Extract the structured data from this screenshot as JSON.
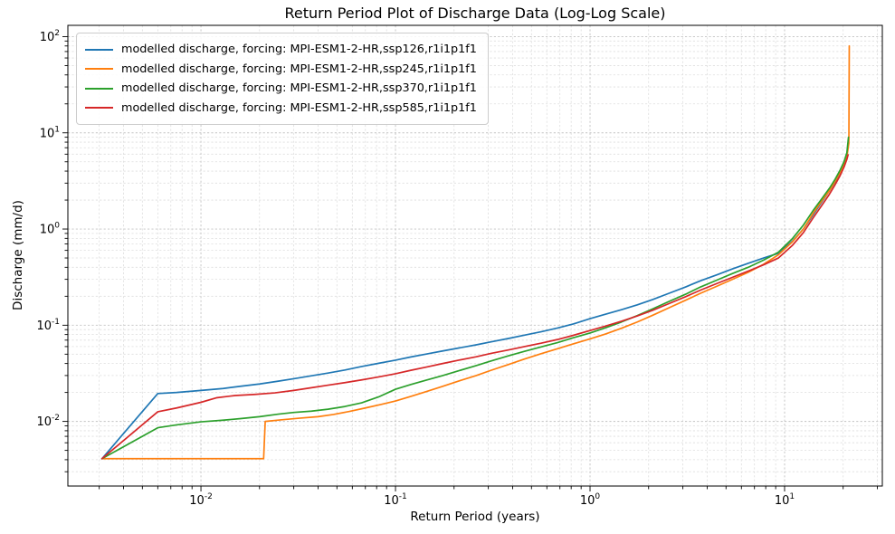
{
  "figure": {
    "background": "#ffffff",
    "spine_color": "#000000",
    "grid_major_color": "#c3c3c3",
    "grid_minor_color": "#dedede"
  },
  "chart_data": {
    "type": "line",
    "title": "Return Period Plot of Discharge Data (Log-Log Scale)",
    "xlabel": "Return Period (years)",
    "ylabel": "Discharge (mm/d)",
    "x_scale": "log",
    "y_scale": "log",
    "xlim": [
      0.00207,
      31.8
    ],
    "ylim": [
      0.00213,
      131.0
    ],
    "x_major_tick_exponents": [
      -2,
      -1,
      0,
      1
    ],
    "y_major_tick_exponents": [
      2,
      1,
      0,
      -1,
      -2
    ],
    "grid": "major and minor, dashed, on",
    "legend_position": "upper left",
    "series": [
      {
        "label": "modelled discharge, forcing: MPI-ESM1-2-HR,ssp126,r1i1p1f1",
        "color": "#1f77b4",
        "points": [
          [
            0.0031,
            0.0041
          ],
          [
            0.006,
            0.0195
          ],
          [
            0.0075,
            0.02
          ],
          [
            0.01,
            0.021
          ],
          [
            0.013,
            0.022
          ],
          [
            0.016,
            0.0232
          ],
          [
            0.02,
            0.0245
          ],
          [
            0.025,
            0.0262
          ],
          [
            0.03,
            0.0278
          ],
          [
            0.037,
            0.0298
          ],
          [
            0.045,
            0.0318
          ],
          [
            0.055,
            0.0342
          ],
          [
            0.067,
            0.0372
          ],
          [
            0.082,
            0.0402
          ],
          [
            0.1,
            0.0433
          ],
          [
            0.12,
            0.0468
          ],
          [
            0.145,
            0.0503
          ],
          [
            0.175,
            0.054
          ],
          [
            0.21,
            0.0578
          ],
          [
            0.26,
            0.0625
          ],
          [
            0.31,
            0.0672
          ],
          [
            0.38,
            0.0728
          ],
          [
            0.46,
            0.0788
          ],
          [
            0.56,
            0.0855
          ],
          [
            0.68,
            0.0935
          ],
          [
            0.82,
            0.103
          ],
          [
            1.0,
            0.117
          ],
          [
            1.2,
            0.13
          ],
          [
            1.45,
            0.145
          ],
          [
            1.75,
            0.163
          ],
          [
            2.1,
            0.185
          ],
          [
            2.55,
            0.215
          ],
          [
            3.1,
            0.25
          ],
          [
            3.7,
            0.29
          ],
          [
            4.5,
            0.335
          ],
          [
            5.4,
            0.385
          ],
          [
            6.5,
            0.44
          ],
          [
            7.8,
            0.5
          ],
          [
            9.3,
            0.56
          ],
          [
            11,
            0.75
          ],
          [
            12.5,
            1.0
          ],
          [
            14,
            1.4
          ],
          [
            15.5,
            1.9
          ],
          [
            17,
            2.5
          ],
          [
            18.2,
            3.1
          ],
          [
            19.2,
            3.8
          ],
          [
            20.0,
            4.5
          ],
          [
            20.6,
            5.2
          ]
        ]
      },
      {
        "label": "modelled discharge, forcing: MPI-ESM1-2-HR,ssp245,r1i1p1f1",
        "color": "#ff7f0e",
        "points": [
          [
            0.0031,
            0.0041
          ],
          [
            0.021,
            0.0041
          ],
          [
            0.0214,
            0.01
          ],
          [
            0.026,
            0.0104
          ],
          [
            0.032,
            0.0108
          ],
          [
            0.04,
            0.0112
          ],
          [
            0.048,
            0.0118
          ],
          [
            0.058,
            0.0127
          ],
          [
            0.07,
            0.0138
          ],
          [
            0.084,
            0.015
          ],
          [
            0.1,
            0.0163
          ],
          [
            0.12,
            0.0182
          ],
          [
            0.145,
            0.0205
          ],
          [
            0.175,
            0.0232
          ],
          [
            0.21,
            0.0262
          ],
          [
            0.26,
            0.03
          ],
          [
            0.31,
            0.034
          ],
          [
            0.38,
            0.039
          ],
          [
            0.46,
            0.0445
          ],
          [
            0.56,
            0.0505
          ],
          [
            0.68,
            0.057
          ],
          [
            0.82,
            0.064
          ],
          [
            1.0,
            0.072
          ],
          [
            1.2,
            0.081
          ],
          [
            1.45,
            0.093
          ],
          [
            1.75,
            0.108
          ],
          [
            2.1,
            0.127
          ],
          [
            2.55,
            0.152
          ],
          [
            3.1,
            0.182
          ],
          [
            3.7,
            0.215
          ],
          [
            4.5,
            0.255
          ],
          [
            5.4,
            0.3
          ],
          [
            6.5,
            0.355
          ],
          [
            7.8,
            0.43
          ],
          [
            9.3,
            0.54
          ],
          [
            11,
            0.74
          ],
          [
            12.5,
            1.0
          ],
          [
            14,
            1.45
          ],
          [
            15.5,
            1.95
          ],
          [
            17,
            2.5
          ],
          [
            18.2,
            3.15
          ],
          [
            19.3,
            3.9
          ],
          [
            20.2,
            4.8
          ],
          [
            21.0,
            6.0
          ],
          [
            21.4,
            7.8
          ],
          [
            21.5,
            80.0
          ]
        ]
      },
      {
        "label": "modelled discharge, forcing: MPI-ESM1-2-HR,ssp370,r1i1p1f1",
        "color": "#2ca02c",
        "points": [
          [
            0.0031,
            0.0041
          ],
          [
            0.006,
            0.0086
          ],
          [
            0.0075,
            0.0092
          ],
          [
            0.01,
            0.0099
          ],
          [
            0.013,
            0.0103
          ],
          [
            0.016,
            0.0107
          ],
          [
            0.02,
            0.0112
          ],
          [
            0.025,
            0.0119
          ],
          [
            0.03,
            0.0124
          ],
          [
            0.037,
            0.0128
          ],
          [
            0.045,
            0.0134
          ],
          [
            0.055,
            0.0143
          ],
          [
            0.067,
            0.0156
          ],
          [
            0.082,
            0.018
          ],
          [
            0.1,
            0.0216
          ],
          [
            0.12,
            0.0242
          ],
          [
            0.145,
            0.027
          ],
          [
            0.175,
            0.03
          ],
          [
            0.21,
            0.0335
          ],
          [
            0.26,
            0.038
          ],
          [
            0.31,
            0.0425
          ],
          [
            0.38,
            0.048
          ],
          [
            0.46,
            0.0535
          ],
          [
            0.56,
            0.0595
          ],
          [
            0.68,
            0.066
          ],
          [
            0.82,
            0.074
          ],
          [
            1.0,
            0.083
          ],
          [
            1.2,
            0.094
          ],
          [
            1.45,
            0.108
          ],
          [
            1.75,
            0.126
          ],
          [
            2.1,
            0.148
          ],
          [
            2.55,
            0.177
          ],
          [
            3.1,
            0.21
          ],
          [
            3.7,
            0.25
          ],
          [
            4.5,
            0.295
          ],
          [
            5.4,
            0.345
          ],
          [
            6.5,
            0.4
          ],
          [
            7.8,
            0.475
          ],
          [
            9.3,
            0.575
          ],
          [
            11,
            0.8
          ],
          [
            12.5,
            1.1
          ],
          [
            14,
            1.55
          ],
          [
            15.5,
            2.05
          ],
          [
            17,
            2.65
          ],
          [
            18.2,
            3.3
          ],
          [
            19.3,
            4.1
          ],
          [
            20.2,
            5.0
          ],
          [
            20.9,
            6.2
          ],
          [
            21.3,
            9.0
          ]
        ]
      },
      {
        "label": "modelled discharge, forcing: MPI-ESM1-2-HR,ssp585,r1i1p1f1",
        "color": "#d62728",
        "points": [
          [
            0.0031,
            0.0041
          ],
          [
            0.006,
            0.0126
          ],
          [
            0.0075,
            0.0138
          ],
          [
            0.01,
            0.0158
          ],
          [
            0.012,
            0.0176
          ],
          [
            0.015,
            0.0186
          ],
          [
            0.019,
            0.0191
          ],
          [
            0.024,
            0.0198
          ],
          [
            0.03,
            0.021
          ],
          [
            0.037,
            0.0224
          ],
          [
            0.045,
            0.0238
          ],
          [
            0.055,
            0.0253
          ],
          [
            0.067,
            0.027
          ],
          [
            0.082,
            0.029
          ],
          [
            0.1,
            0.0313
          ],
          [
            0.12,
            0.034
          ],
          [
            0.145,
            0.0368
          ],
          [
            0.175,
            0.04
          ],
          [
            0.21,
            0.0432
          ],
          [
            0.26,
            0.047
          ],
          [
            0.31,
            0.051
          ],
          [
            0.38,
            0.0553
          ],
          [
            0.46,
            0.06
          ],
          [
            0.56,
            0.065
          ],
          [
            0.68,
            0.071
          ],
          [
            0.82,
            0.0785
          ],
          [
            1.0,
            0.088
          ],
          [
            1.2,
            0.098
          ],
          [
            1.45,
            0.11
          ],
          [
            1.75,
            0.125
          ],
          [
            2.1,
            0.143
          ],
          [
            2.55,
            0.168
          ],
          [
            3.1,
            0.198
          ],
          [
            3.7,
            0.232
          ],
          [
            4.5,
            0.272
          ],
          [
            5.4,
            0.315
          ],
          [
            6.5,
            0.365
          ],
          [
            7.8,
            0.425
          ],
          [
            9.3,
            0.5
          ],
          [
            11,
            0.68
          ],
          [
            12.5,
            0.92
          ],
          [
            14,
            1.3
          ],
          [
            15.5,
            1.75
          ],
          [
            17,
            2.3
          ],
          [
            18.2,
            2.9
          ],
          [
            19.3,
            3.6
          ],
          [
            20.2,
            4.4
          ],
          [
            20.9,
            5.3
          ],
          [
            21.2,
            5.9
          ]
        ]
      }
    ]
  }
}
